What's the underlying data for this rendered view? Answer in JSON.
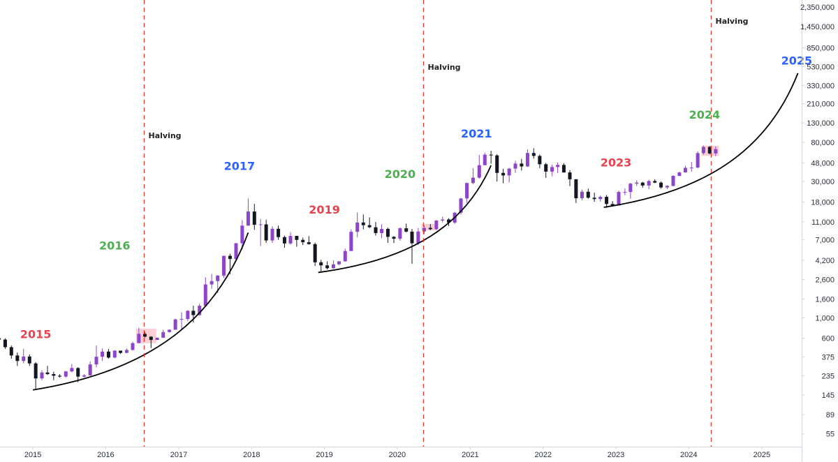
{
  "chart_data": {
    "type": "candlestick",
    "title": "",
    "xlabel": "",
    "ylabel": "",
    "y_scale": "log",
    "ylim": [
      40,
      2800000
    ],
    "xlim": [
      "2014-07-20",
      "2025-07-20"
    ],
    "grid": false,
    "legend": "none",
    "y_ticks": [
      "2,350,000",
      "1,450,000",
      "850,000",
      "530,000",
      "330,000",
      "210,000",
      "130,000",
      "80,000",
      "48,000",
      "30,000",
      "18,000",
      "11,000",
      "7,000",
      "4,200",
      "2,600",
      "1,600",
      "1,000",
      "600",
      "375",
      "235",
      "145",
      "89",
      "55"
    ],
    "x_ticks": [
      "2015",
      "2016",
      "2017",
      "2018",
      "2019",
      "2020",
      "2021",
      "2022",
      "2023",
      "2024",
      "2025"
    ],
    "halvings": [
      {
        "label": "Halving",
        "date": "2016-07-09"
      },
      {
        "label": "Halving",
        "date": "2020-05-11"
      },
      {
        "label": "Halving",
        "date": "2024-04-20"
      }
    ],
    "year_annotations": [
      {
        "text": "2015",
        "date": "2015-01-15",
        "price": 600,
        "color": "#e8424f"
      },
      {
        "text": "2016",
        "date": "2016-02-15",
        "price": 5500,
        "color": "#4caf50"
      },
      {
        "text": "2017",
        "date": "2017-11-01",
        "price": 40000,
        "color": "#2962ff"
      },
      {
        "text": "2019",
        "date": "2019-01-01",
        "price": 13500,
        "color": "#e8424f"
      },
      {
        "text": "2020",
        "date": "2020-01-15",
        "price": 33000,
        "color": "#4caf50"
      },
      {
        "text": "2021",
        "date": "2021-02-01",
        "price": 90000,
        "color": "#2962ff"
      },
      {
        "text": "2023",
        "date": "2023-01-01",
        "price": 44000,
        "color": "#e8424f"
      },
      {
        "text": "2024",
        "date": "2024-03-20",
        "price": 145000,
        "color": "#4caf50"
      },
      {
        "text": "2025",
        "date": "2025-06-25",
        "price": 560000,
        "color": "#2962ff"
      }
    ],
    "candles": [
      [
        "2014-07-01",
        600,
        620,
        560,
        580
      ],
      [
        "2014-08-01",
        580,
        600,
        460,
        480
      ],
      [
        "2014-09-01",
        480,
        500,
        360,
        390
      ],
      [
        "2014-10-01",
        390,
        420,
        300,
        340
      ],
      [
        "2014-11-01",
        340,
        460,
        320,
        380
      ],
      [
        "2014-12-01",
        380,
        400,
        300,
        320
      ],
      [
        "2015-01-01",
        320,
        330,
        170,
        220
      ],
      [
        "2015-02-01",
        220,
        270,
        210,
        255
      ],
      [
        "2015-03-01",
        255,
        300,
        240,
        245
      ],
      [
        "2015-04-01",
        245,
        260,
        210,
        235
      ],
      [
        "2015-05-01",
        235,
        245,
        225,
        230
      ],
      [
        "2015-06-01",
        230,
        265,
        225,
        262
      ],
      [
        "2015-07-01",
        262,
        315,
        255,
        285
      ],
      [
        "2015-08-01",
        285,
        290,
        200,
        230
      ],
      [
        "2015-09-01",
        230,
        245,
        225,
        237
      ],
      [
        "2015-10-01",
        237,
        335,
        235,
        312
      ],
      [
        "2015-11-01",
        312,
        500,
        290,
        378
      ],
      [
        "2015-12-01",
        378,
        465,
        340,
        430
      ],
      [
        "2016-01-01",
        430,
        460,
        360,
        370
      ],
      [
        "2016-02-01",
        370,
        445,
        365,
        440
      ],
      [
        "2016-03-01",
        440,
        440,
        405,
        416
      ],
      [
        "2016-04-01",
        416,
        465,
        412,
        448
      ],
      [
        "2016-05-01",
        448,
        550,
        440,
        531
      ],
      [
        "2016-06-01",
        531,
        780,
        530,
        670
      ],
      [
        "2016-07-01",
        670,
        705,
        610,
        624
      ],
      [
        "2016-08-01",
        624,
        630,
        470,
        575
      ],
      [
        "2016-09-01",
        575,
        610,
        580,
        608
      ],
      [
        "2016-10-01",
        608,
        740,
        605,
        700
      ],
      [
        "2016-11-01",
        700,
        750,
        690,
        742
      ],
      [
        "2016-12-01",
        742,
        980,
        740,
        960
      ],
      [
        "2017-01-01",
        960,
        1150,
        750,
        970
      ],
      [
        "2017-02-01",
        970,
        1210,
        920,
        1190
      ],
      [
        "2017-03-01",
        1190,
        1350,
        890,
        1070
      ],
      [
        "2017-04-01",
        1070,
        1420,
        1050,
        1350
      ],
      [
        "2017-05-01",
        1350,
        2750,
        1350,
        2300
      ],
      [
        "2017-06-01",
        2300,
        3000,
        2070,
        2500
      ],
      [
        "2017-07-01",
        2500,
        2900,
        1850,
        2870
      ],
      [
        "2017-08-01",
        2870,
        4700,
        2700,
        4700
      ],
      [
        "2017-09-01",
        4700,
        4950,
        2970,
        4340
      ],
      [
        "2017-10-01",
        4340,
        6470,
        4200,
        6440
      ],
      [
        "2017-11-01",
        6440,
        11500,
        5500,
        10000
      ],
      [
        "2017-12-01",
        10000,
        19700,
        10000,
        14200
      ],
      [
        "2018-01-01",
        14200,
        17200,
        9000,
        10200
      ],
      [
        "2018-02-01",
        10200,
        11800,
        6000,
        10300
      ],
      [
        "2018-03-01",
        10300,
        11600,
        6500,
        6900
      ],
      [
        "2018-04-01",
        6900,
        9800,
        6500,
        9240
      ],
      [
        "2018-05-01",
        9240,
        9990,
        7000,
        7500
      ],
      [
        "2018-06-01",
        7500,
        7780,
        5750,
        6400
      ],
      [
        "2018-07-01",
        6400,
        8500,
        6200,
        7730
      ],
      [
        "2018-08-01",
        7730,
        7750,
        5900,
        7000
      ],
      [
        "2018-09-01",
        7000,
        7400,
        6150,
        6600
      ],
      [
        "2018-10-01",
        6600,
        7700,
        6200,
        6300
      ],
      [
        "2018-11-01",
        6300,
        6550,
        3650,
        4000
      ],
      [
        "2018-12-01",
        4000,
        4250,
        3150,
        3700
      ],
      [
        "2019-01-01",
        3700,
        4100,
        3350,
        3450
      ],
      [
        "2019-02-01",
        3450,
        4200,
        3400,
        3800
      ],
      [
        "2019-03-01",
        3800,
        4100,
        3700,
        4100
      ],
      [
        "2019-04-01",
        4100,
        5600,
        4050,
        5300
      ],
      [
        "2019-05-01",
        5300,
        9100,
        5300,
        8560
      ],
      [
        "2019-06-01",
        8560,
        13900,
        7450,
        10800
      ],
      [
        "2019-07-01",
        10800,
        13200,
        9100,
        10100
      ],
      [
        "2019-08-01",
        10100,
        12300,
        9400,
        9600
      ],
      [
        "2019-09-01",
        9600,
        10950,
        7800,
        8300
      ],
      [
        "2019-10-01",
        8300,
        10350,
        7300,
        9200
      ],
      [
        "2019-11-01",
        9200,
        9500,
        6500,
        7550
      ],
      [
        "2019-12-01",
        7550,
        7700,
        6450,
        7200
      ],
      [
        "2020-01-01",
        7200,
        9600,
        6850,
        9350
      ],
      [
        "2020-02-01",
        9350,
        10500,
        8450,
        8600
      ],
      [
        "2020-03-01",
        8600,
        9200,
        3850,
        6430
      ],
      [
        "2020-04-01",
        6430,
        9450,
        6150,
        8630
      ],
      [
        "2020-05-01",
        8630,
        10050,
        8100,
        9450
      ],
      [
        "2020-06-01",
        9450,
        10400,
        8900,
        9140
      ],
      [
        "2020-07-01",
        9140,
        11450,
        8950,
        11350
      ],
      [
        "2020-08-01",
        11350,
        12470,
        10850,
        11650
      ],
      [
        "2020-09-01",
        11650,
        12050,
        9870,
        10780
      ],
      [
        "2020-10-01",
        10780,
        14100,
        10400,
        13800
      ],
      [
        "2020-11-01",
        13800,
        19900,
        13200,
        19700
      ],
      [
        "2020-12-01",
        19700,
        29300,
        17600,
        28990
      ],
      [
        "2021-01-01",
        28990,
        41950,
        28100,
        33100
      ],
      [
        "2021-02-01",
        33100,
        58350,
        32300,
        45200
      ],
      [
        "2021-03-01",
        45200,
        61800,
        45000,
        58800
      ],
      [
        "2021-04-01",
        58800,
        64850,
        47000,
        57700
      ],
      [
        "2021-05-01",
        57700,
        59500,
        30000,
        37300
      ],
      [
        "2021-06-01",
        37300,
        41300,
        28800,
        35000
      ],
      [
        "2021-07-01",
        35000,
        42400,
        29300,
        41500
      ],
      [
        "2021-08-01",
        41500,
        50500,
        37300,
        47100
      ],
      [
        "2021-09-01",
        47100,
        52900,
        39600,
        43800
      ],
      [
        "2021-10-01",
        43800,
        67000,
        43300,
        61300
      ],
      [
        "2021-11-01",
        61300,
        69000,
        53250,
        57000
      ],
      [
        "2021-12-01",
        57000,
        59050,
        42000,
        46300
      ],
      [
        "2022-01-01",
        46300,
        47950,
        32950,
        38500
      ],
      [
        "2022-02-01",
        38500,
        45800,
        34300,
        43200
      ],
      [
        "2022-03-01",
        43200,
        48200,
        37200,
        45500
      ],
      [
        "2022-04-01",
        45500,
        47450,
        37600,
        37700
      ],
      [
        "2022-05-01",
        37700,
        40000,
        26700,
        31800
      ],
      [
        "2022-06-01",
        31800,
        31950,
        17600,
        19800
      ],
      [
        "2022-07-01",
        19800,
        24650,
        18800,
        23300
      ],
      [
        "2022-08-01",
        23300,
        25200,
        19550,
        20050
      ],
      [
        "2022-09-01",
        20050,
        22800,
        18150,
        19400
      ],
      [
        "2022-10-01",
        19400,
        21100,
        18200,
        20500
      ],
      [
        "2022-11-01",
        20500,
        21450,
        15500,
        17150
      ],
      [
        "2022-12-01",
        17150,
        18400,
        16250,
        16550
      ],
      [
        "2023-01-01",
        16550,
        23950,
        16500,
        23150
      ],
      [
        "2023-02-01",
        23150,
        25250,
        21350,
        23150
      ],
      [
        "2023-03-01",
        23150,
        29200,
        19550,
        28500
      ],
      [
        "2023-04-01",
        28500,
        31000,
        26950,
        29250
      ],
      [
        "2023-05-01",
        29250,
        29850,
        25800,
        27200
      ],
      [
        "2023-06-01",
        27200,
        31400,
        24800,
        30450
      ],
      [
        "2023-07-01",
        30450,
        31850,
        28850,
        29250
      ],
      [
        "2023-08-01",
        29250,
        30200,
        25150,
        25950
      ],
      [
        "2023-09-01",
        25950,
        27450,
        24950,
        26950
      ],
      [
        "2023-10-01",
        26950,
        35150,
        26550,
        34650
      ],
      [
        "2023-11-01",
        34650,
        38450,
        34100,
        37700
      ],
      [
        "2023-12-01",
        37700,
        44700,
        37600,
        42300
      ],
      [
        "2024-01-01",
        42300,
        48950,
        38550,
        42600
      ],
      [
        "2024-02-01",
        42600,
        63900,
        41900,
        61150
      ],
      [
        "2024-03-01",
        61150,
        73750,
        59100,
        71300
      ],
      [
        "2024-04-01",
        71300,
        72800,
        59200,
        60650
      ],
      [
        "2024-05-01",
        60650,
        71950,
        56550,
        67500
      ]
    ],
    "consolidation_zones": [
      {
        "x0": "2016-06-01",
        "x1": "2016-09-10",
        "y0": 530,
        "y1": 760
      },
      {
        "x0": "2020-05-01",
        "x1": "2020-07-15",
        "y0": 8900,
        "y1": 10400
      },
      {
        "x0": "2024-03-05",
        "x1": "2024-05-31",
        "y0": 57000,
        "y1": 73500
      }
    ],
    "trend_curves": [
      {
        "from": [
          "2015-01-01",
          165
        ],
        "to": [
          "2017-12-15",
          8400
        ]
      },
      {
        "from": [
          "2018-12-01",
          3100
        ],
        "to": [
          "2021-04-15",
          45000
        ]
      },
      {
        "from": [
          "2022-11-01",
          15800
        ],
        "to": [
          "2025-07-01",
          450000
        ]
      }
    ]
  }
}
